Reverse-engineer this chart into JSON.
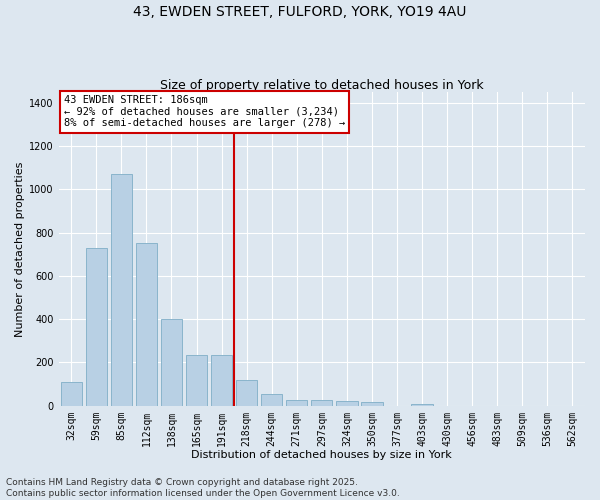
{
  "title_line1": "43, EWDEN STREET, FULFORD, YORK, YO19 4AU",
  "title_line2": "Size of property relative to detached houses in York",
  "xlabel": "Distribution of detached houses by size in York",
  "ylabel": "Number of detached properties",
  "categories": [
    "32sqm",
    "59sqm",
    "85sqm",
    "112sqm",
    "138sqm",
    "165sqm",
    "191sqm",
    "218sqm",
    "244sqm",
    "271sqm",
    "297sqm",
    "324sqm",
    "350sqm",
    "377sqm",
    "403sqm",
    "430sqm",
    "456sqm",
    "483sqm",
    "509sqm",
    "536sqm",
    "562sqm"
  ],
  "values": [
    110,
    730,
    1070,
    750,
    400,
    235,
    235,
    120,
    55,
    25,
    28,
    20,
    15,
    0,
    10,
    0,
    0,
    0,
    0,
    0,
    0
  ],
  "bar_color": "#b8d0e4",
  "bar_edgecolor": "#8ab4cc",
  "background_color": "#dde7f0",
  "grid_color": "#ffffff",
  "vline_index": 6,
  "vline_color": "#cc0000",
  "annotation_text": "43 EWDEN STREET: 186sqm\n← 92% of detached houses are smaller (3,234)\n8% of semi-detached houses are larger (278) →",
  "annotation_box_edgecolor": "#cc0000",
  "annotation_box_facecolor": "#ffffff",
  "footer_text": "Contains HM Land Registry data © Crown copyright and database right 2025.\nContains public sector information licensed under the Open Government Licence v3.0.",
  "ylim": [
    0,
    1450
  ],
  "yticks": [
    0,
    200,
    400,
    600,
    800,
    1000,
    1200,
    1400
  ],
  "title_fontsize": 10,
  "subtitle_fontsize": 9,
  "axis_label_fontsize": 8,
  "tick_fontsize": 7,
  "footer_fontsize": 6.5,
  "annotation_fontsize": 7.5
}
